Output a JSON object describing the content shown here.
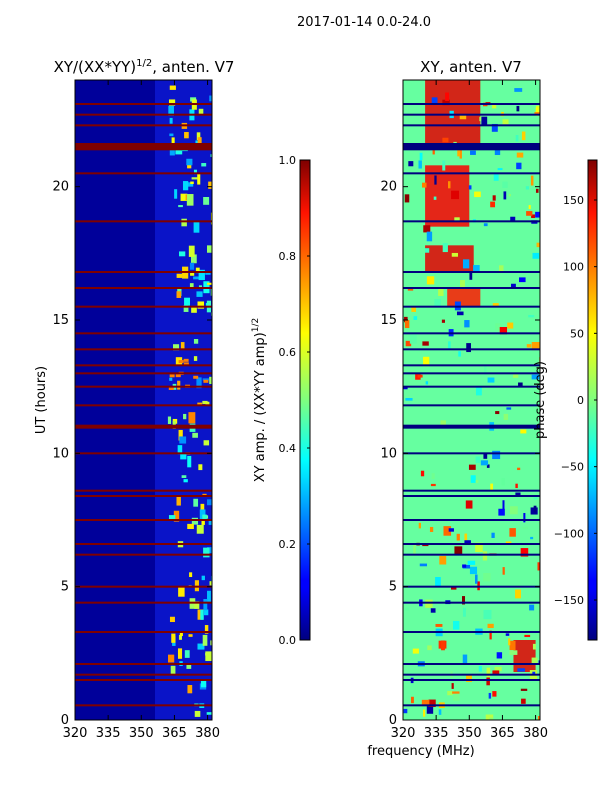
{
  "suptitle": "2017-01-14 0.0-24.0",
  "xlabel_shared": "frequency (MHz)",
  "chart_data": [
    {
      "type": "heatmap",
      "title_prefix": "XY/(XX*YY)",
      "title_sup": "1/2",
      "title_suffix": ", anten. V7",
      "ylabel": "UT (hours)",
      "xlim": [
        320,
        382
      ],
      "ylim": [
        0,
        24
      ],
      "xticks": [
        {
          "v": 320,
          "label": "320"
        },
        {
          "v": 335,
          "label": "335"
        },
        {
          "v": 350,
          "label": "350"
        },
        {
          "v": 365,
          "label": "365"
        },
        {
          "v": 380,
          "label": "380"
        }
      ],
      "yticks": [
        {
          "v": 0,
          "label": "0"
        },
        {
          "v": 5,
          "label": "5"
        },
        {
          "v": 10,
          "label": "10"
        },
        {
          "v": 15,
          "label": "15"
        },
        {
          "v": 20,
          "label": "20"
        }
      ],
      "colorbar": {
        "label_prefix": "XY amp. / (XX*YY amp)",
        "label_sup": "1/2",
        "range": [
          0.0,
          1.0
        ],
        "ticks": [
          {
            "v": 0.0,
            "label": "0.0"
          },
          {
            "v": 0.2,
            "label": "0.2"
          },
          {
            "v": 0.4,
            "label": "0.4"
          },
          {
            "v": 0.6,
            "label": "0.6"
          },
          {
            "v": 0.8,
            "label": "0.8"
          },
          {
            "v": 1.0,
            "label": "1.0"
          }
        ]
      },
      "flag_bands_ut": [
        0.55,
        1.5,
        1.7,
        2.1,
        3.3,
        4.4,
        5.0,
        6.2,
        6.6,
        7.5,
        8.4,
        8.6,
        10.0,
        11.0,
        11.8,
        12.5,
        13.0,
        13.3,
        13.9,
        14.5,
        15.5,
        16.2,
        16.8,
        18.7,
        20.5,
        21.4,
        21.6,
        22.3,
        22.7,
        23.1
      ]
    },
    {
      "type": "heatmap",
      "title": "XY, anten. V7",
      "ylabel": "",
      "xlim": [
        320,
        382
      ],
      "ylim": [
        0,
        24
      ],
      "xticks": [
        {
          "v": 320,
          "label": "320"
        },
        {
          "v": 335,
          "label": "335"
        },
        {
          "v": 350,
          "label": "350"
        },
        {
          "v": 365,
          "label": "365"
        },
        {
          "v": 380,
          "label": "380"
        }
      ],
      "yticks": [
        {
          "v": 0,
          "label": "0"
        },
        {
          "v": 5,
          "label": "5"
        },
        {
          "v": 10,
          "label": "10"
        },
        {
          "v": 15,
          "label": "15"
        },
        {
          "v": 20,
          "label": "20"
        }
      ],
      "colorbar": {
        "label": "phase (deg)",
        "range": [
          -180,
          180
        ],
        "ticks": [
          {
            "v": -150,
            "label": "−150"
          },
          {
            "v": -100,
            "label": "−100"
          },
          {
            "v": -50,
            "label": "−50"
          },
          {
            "v": 0,
            "label": "0"
          },
          {
            "v": 50,
            "label": "50"
          },
          {
            "v": 100,
            "label": "100"
          },
          {
            "v": 150,
            "label": "150"
          }
        ]
      },
      "flag_bands_ut": [
        0.55,
        1.5,
        1.7,
        2.1,
        3.3,
        4.4,
        5.0,
        6.2,
        6.6,
        7.5,
        8.4,
        8.6,
        10.0,
        11.0,
        11.8,
        12.5,
        13.0,
        13.3,
        13.9,
        14.5,
        15.5,
        16.2,
        16.8,
        18.7,
        20.5,
        21.4,
        21.6,
        22.3,
        22.7,
        23.1
      ]
    }
  ]
}
